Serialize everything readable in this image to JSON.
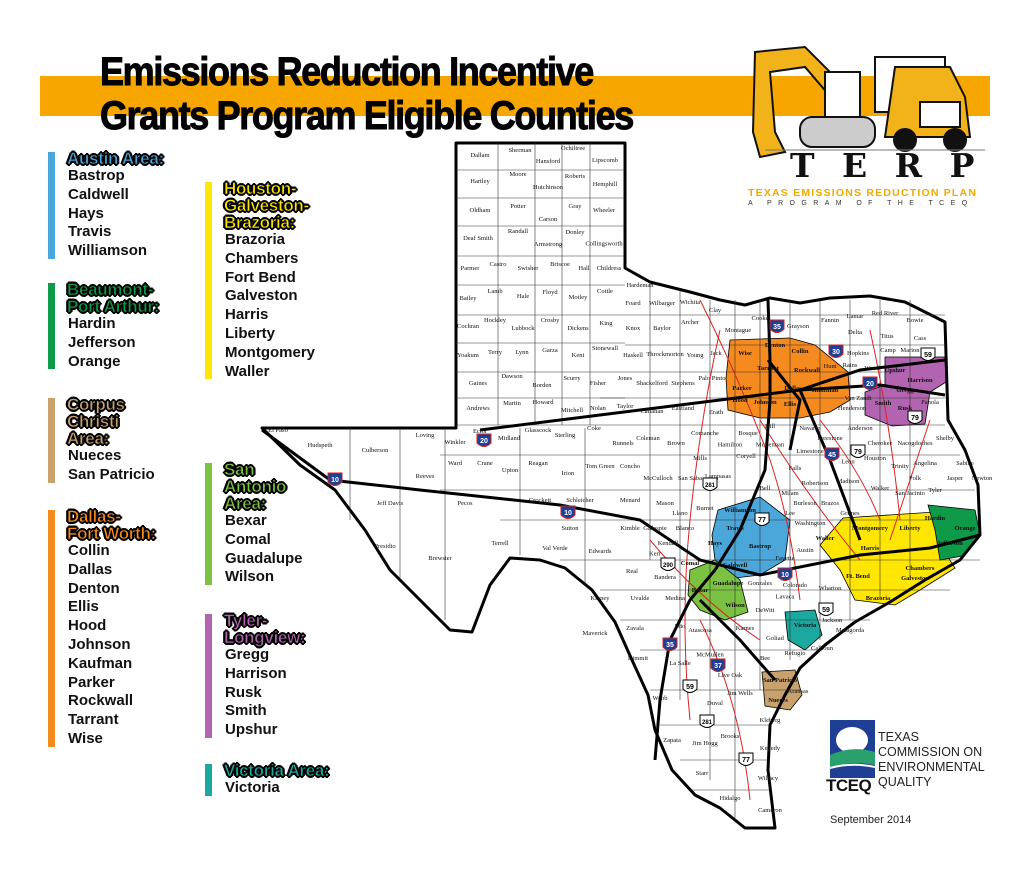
{
  "header": {
    "title_line1": "Emissions Reduction Incentive",
    "title_line2": "Grants Program Eligible Counties",
    "banner_color": "#f7a600"
  },
  "logo": {
    "letters": "T E R P",
    "name": "TEXAS EMISSIONS REDUCTION PLAN",
    "tagline": "A PROGRAM OF THE TCEQ"
  },
  "legend": [
    {
      "title": "Austin Area:",
      "color": "#4ba6d9",
      "counties": [
        "Bastrop",
        "Caldwell",
        "Hays",
        "Travis",
        "Williamson"
      ]
    },
    {
      "title": "Beaumont-Port Arthur:",
      "color": "#0e9a48",
      "counties": [
        "Hardin",
        "Jefferson",
        "Orange"
      ]
    },
    {
      "title": "Corpus Christi Area:",
      "color": "#c8a16c",
      "counties": [
        "Nueces",
        "San Patricio"
      ]
    },
    {
      "title": "Dallas-Fort Worth:",
      "color": "#f58a1f",
      "counties": [
        "Collin",
        "Dallas",
        "Denton",
        "Ellis",
        "Hood",
        "Johnson",
        "Kaufman",
        "Parker",
        "Rockwall",
        "Tarrant",
        "Wise"
      ]
    },
    {
      "title": "Houston-Galveston-Brazoria:",
      "color": "#ffe600",
      "counties": [
        "Brazoria",
        "Chambers",
        "Fort Bend",
        "Galveston",
        "Harris",
        "Liberty",
        "Montgomery",
        "Waller"
      ]
    },
    {
      "title": "San Antonio Area:",
      "color": "#7cc242",
      "counties": [
        "Bexar",
        "Comal",
        "Guadalupe",
        "Wilson"
      ]
    },
    {
      "title": "Tyler-Longview:",
      "color": "#b264b0",
      "counties": [
        "Gregg",
        "Harrison",
        "Rusk",
        "Smith",
        "Upshur"
      ]
    },
    {
      "title": "Victoria Area:",
      "color": "#1ba89f",
      "counties": [
        "Victoria"
      ]
    }
  ],
  "map": {
    "counties": [
      "Dallam",
      "Sherman",
      "Hansford",
      "Ochiltree",
      "Lipscomb",
      "Hartley",
      "Moore",
      "Hutchinson",
      "Roberts",
      "Hemphill",
      "Oldham",
      "Potter",
      "Carson",
      "Gray",
      "Wheeler",
      "Deaf Smith",
      "Randall",
      "Armstrong",
      "Donley",
      "Collingsworth",
      "Parmer",
      "Castro",
      "Swisher",
      "Briscoe",
      "Hall",
      "Childress",
      "Bailey",
      "Lamb",
      "Hale",
      "Floyd",
      "Motley",
      "Cottle",
      "Hardeman",
      "Foard",
      "Wilbarger",
      "Wichita",
      "Clay",
      "Cochran",
      "Hockley",
      "Lubbock",
      "Crosby",
      "Dickens",
      "King",
      "Knox",
      "Baylor",
      "Archer",
      "Montague",
      "Cooke",
      "Grayson",
      "Fannin",
      "Lamar",
      "Red River",
      "Bowie",
      "Yoakum",
      "Terry",
      "Lynn",
      "Garza",
      "Kent",
      "Stonewall",
      "Haskell",
      "Throckmorton",
      "Young",
      "Jack",
      "Wise",
      "Denton",
      "Collin",
      "Delta",
      "Titus",
      "Cass",
      "Hopkins",
      "Camp",
      "Marion",
      "Hunt",
      "Rains",
      "Wood",
      "Upshur",
      "Harrison",
      "Gaines",
      "Dawson",
      "Borden",
      "Scurry",
      "Fisher",
      "Jones",
      "Shackelford",
      "Stephens",
      "Palo Pinto",
      "Parker",
      "Tarrant",
      "Dallas",
      "Rockwall",
      "Kaufman",
      "Van Zandt",
      "Smith",
      "Gregg",
      "Rusk",
      "Panola",
      "Andrews",
      "Martin",
      "Howard",
      "Mitchell",
      "Nolan",
      "Taylor",
      "Callahan",
      "Eastland",
      "Erath",
      "Hood",
      "Johnson",
      "Ellis",
      "Henderson",
      "Shelby",
      "Sabine",
      "Newton",
      "Jasper",
      "Tyler",
      "Polk",
      "Angelina",
      "Nacogdoches",
      "Cherokee",
      "Anderson",
      "Navarro",
      "Hill",
      "Bosque",
      "Comanche",
      "Brown",
      "Coleman",
      "Runnels",
      "Coke",
      "Sterling",
      "Glasscock",
      "Midland",
      "Ector",
      "Winkler",
      "Loving",
      "El Paso",
      "Hudspeth",
      "Culberson",
      "Reeves",
      "Ward",
      "Crane",
      "Upton",
      "Reagan",
      "Irion",
      "Tom Green",
      "Concho",
      "McCulloch",
      "Mills",
      "Coryell",
      "McLennan",
      "Limestone",
      "Freestone",
      "Leon",
      "Houston",
      "Trinity",
      "Hamilton",
      "Falls",
      "Robertson",
      "Madison",
      "Walker",
      "San Jacinto",
      "Lampasas",
      "San Saba",
      "Bell",
      "Milam",
      "Brazos",
      "Grimes",
      "Burleson",
      "Jeff Davis",
      "Pecos",
      "Crockett",
      "Schleicher",
      "Sutton",
      "Menard",
      "Kimble",
      "Mason",
      "Llano",
      "Burnet",
      "Williamson",
      "Lee",
      "Washington",
      "Travis",
      "Bastrop",
      "Gillespie",
      "Blanco",
      "Kendall",
      "Kerr",
      "Comal",
      "Hays",
      "Caldwell",
      "Fayette",
      "Austin",
      "Waller",
      "Montgomery",
      "Liberty",
      "Hardin",
      "Orange",
      "Jefferson",
      "Harris",
      "Chambers",
      "Galveston",
      "Ft. Bend",
      "Brazoria",
      "Wharton",
      "Colorado",
      "Lavaca",
      "Gonzales",
      "Guadalupe",
      "Bexar",
      "Wilson",
      "Val Verde",
      "Edwards",
      "Real",
      "Bandera",
      "Kinney",
      "Uvalde",
      "Medina",
      "Atascosa",
      "Karnes",
      "DeWitt",
      "Victoria",
      "Jackson",
      "Matagorda",
      "Calhoun",
      "Goliad",
      "Bee",
      "Refugio",
      "Maverick",
      "Zavala",
      "Frio",
      "Dimmit",
      "La Salle",
      "McMullen",
      "Live Oak",
      "San Patricio",
      "Nueces",
      "Aransas",
      "Webb",
      "Duval",
      "Jim Wells",
      "Kleberg",
      "Zapata",
      "Jim Hogg",
      "Brooks",
      "Kenedy",
      "Starr",
      "Hidalgo",
      "Willacy",
      "Cameron",
      "Brewster",
      "Presidio",
      "Terrell"
    ],
    "highways": [
      "10",
      "20",
      "30",
      "35",
      "37",
      "45",
      "59",
      "77",
      "79",
      "281",
      "290"
    ]
  },
  "tceq": {
    "abbr": "TCEQ",
    "name_lines": [
      "TEXAS",
      "COMMISSION ON",
      "ENVIRONMENTAL",
      "QUALITY"
    ]
  },
  "date": "September 2014"
}
